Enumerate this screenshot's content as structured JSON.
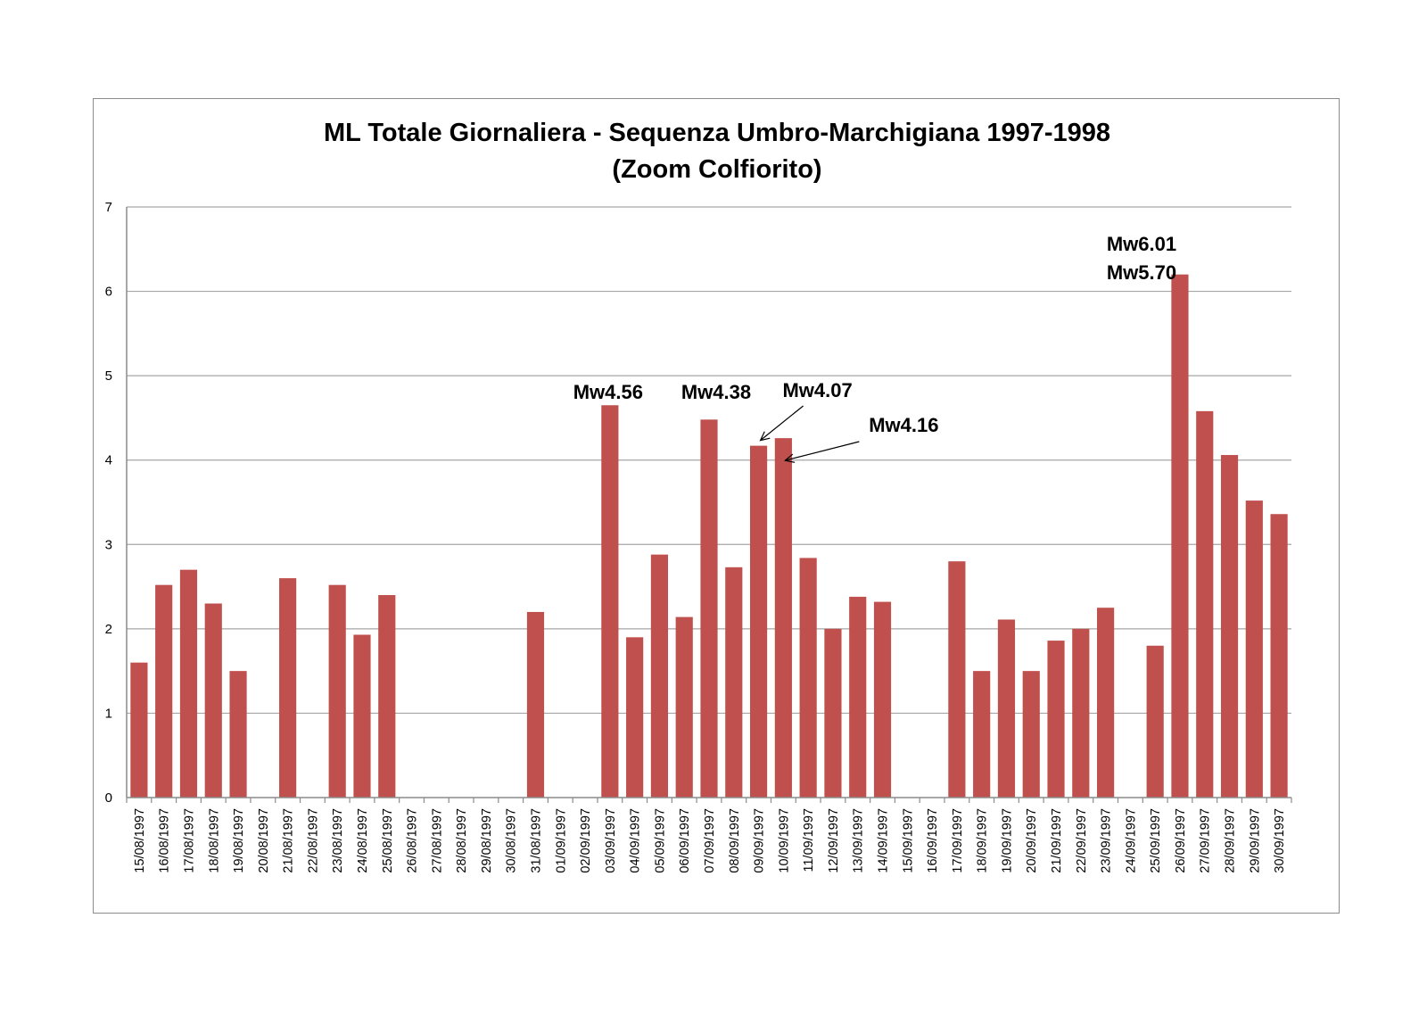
{
  "chart_data": {
    "type": "bar",
    "title": "ML Totale Giornaliera - Sequenza Umbro-Marchigiana 1997-1998",
    "subtitle": "(Zoom Colfiorito)",
    "xlabel": "",
    "ylabel": "",
    "ylim": [
      0,
      7
    ],
    "yticks": [
      "0",
      "1",
      "2",
      "3",
      "4",
      "5",
      "6",
      "7"
    ],
    "grid": true,
    "legend": "none",
    "bar_color": "#c0504d",
    "categories": [
      "15/08/1997",
      "16/08/1997",
      "17/08/1997",
      "18/08/1997",
      "19/08/1997",
      "20/08/1997",
      "21/08/1997",
      "22/08/1997",
      "23/08/1997",
      "24/08/1997",
      "25/08/1997",
      "26/08/1997",
      "27/08/1997",
      "28/08/1997",
      "29/08/1997",
      "30/08/1997",
      "31/08/1997",
      "01/09/1997",
      "02/09/1997",
      "03/09/1997",
      "04/09/1997",
      "05/09/1997",
      "06/09/1997",
      "07/09/1997",
      "08/09/1997",
      "09/09/1997",
      "10/09/1997",
      "11/09/1997",
      "12/09/1997",
      "13/09/1997",
      "14/09/1997",
      "15/09/1997",
      "16/09/1997",
      "17/09/1997",
      "18/09/1997",
      "19/09/1997",
      "20/09/1997",
      "21/09/1997",
      "22/09/1997",
      "23/09/1997",
      "24/09/1997",
      "25/09/1997",
      "26/09/1997",
      "27/09/1997",
      "28/09/1997",
      "29/09/1997",
      "30/09/1997"
    ],
    "values": [
      1.6,
      2.52,
      2.7,
      2.3,
      1.5,
      null,
      2.6,
      null,
      2.52,
      1.93,
      2.4,
      null,
      null,
      null,
      null,
      null,
      2.2,
      null,
      null,
      4.65,
      1.9,
      2.88,
      2.14,
      4.48,
      2.73,
      4.17,
      4.26,
      2.84,
      2.0,
      2.38,
      2.32,
      null,
      null,
      2.8,
      1.5,
      2.11,
      1.5,
      1.86,
      2.0,
      2.25,
      null,
      1.8,
      6.2,
      4.58,
      4.06,
      3.52,
      3.36
    ],
    "annotations": [
      {
        "label": "Mw4.56",
        "category": "03/09/1997",
        "arrow": false
      },
      {
        "label": "Mw4.38",
        "category": "07/09/1997",
        "arrow": false
      },
      {
        "label": "Mw4.07",
        "category": "09/09/1997",
        "arrow": true
      },
      {
        "label": "Mw4.16",
        "category": "10/09/1997",
        "arrow": true
      },
      {
        "label": "Mw6.01",
        "category": "26/09/1997",
        "arrow": false
      },
      {
        "label": "Mw5.70",
        "category": "26/09/1997",
        "arrow": false
      }
    ]
  }
}
